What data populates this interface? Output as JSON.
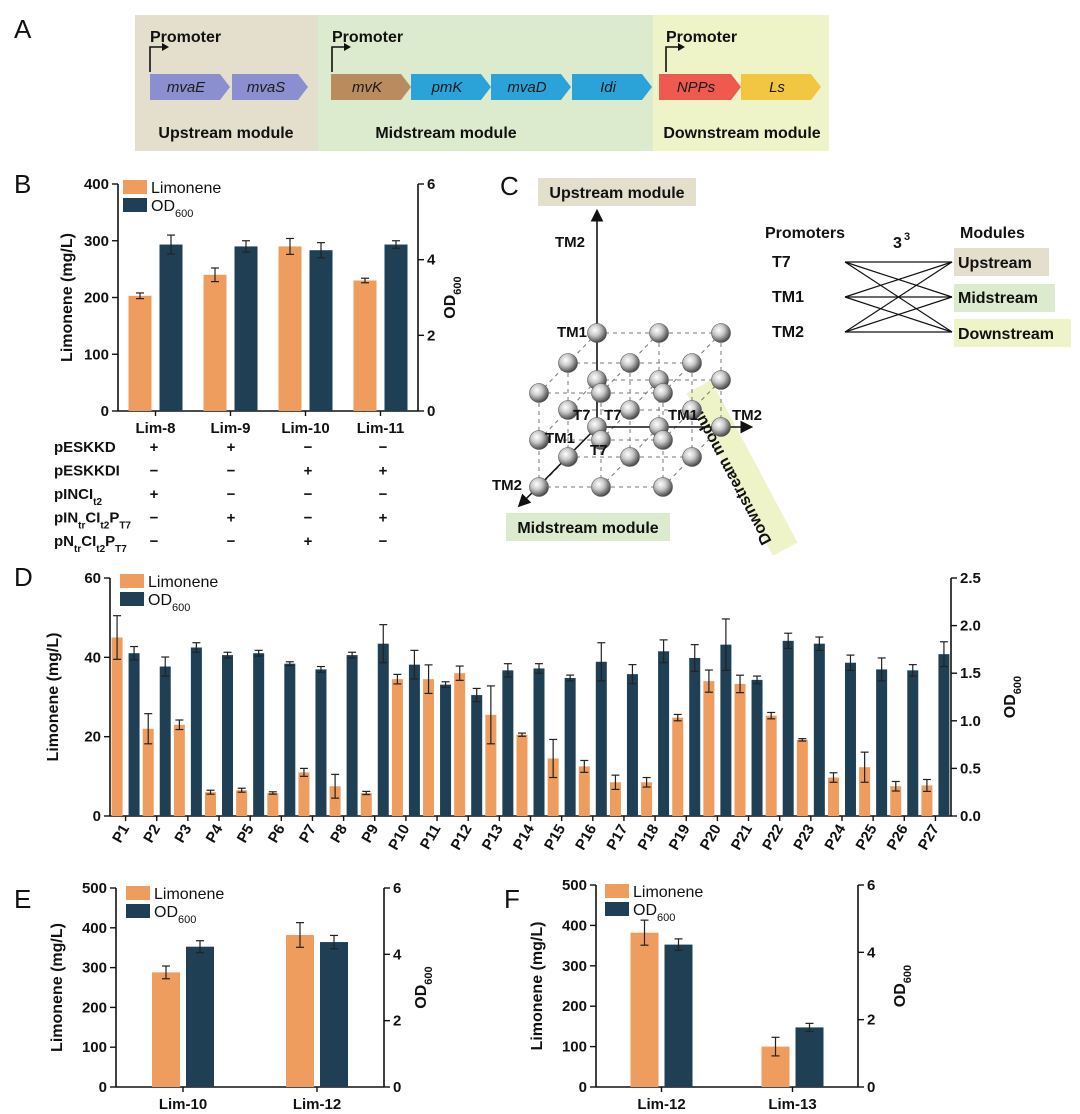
{
  "colors": {
    "limonene": "#EE9D5E",
    "od600": "#1F3F54",
    "upstream_bg": "#E3DFCC",
    "midstream_bg": "#DCEBCE",
    "downstream_bg": "#EFF3C8",
    "grid": "#8a8a8a"
  },
  "panels": {
    "A": "A",
    "B": "B",
    "C": "C",
    "D": "D",
    "E": "E",
    "F": "F"
  },
  "panelA": {
    "modules": [
      {
        "promoter": "Promoter",
        "label": "Upstream module",
        "genes": [
          {
            "name": "mvaE",
            "color": "#8B8FCF"
          },
          {
            "name": "mvaS",
            "color": "#8B8FCF"
          }
        ]
      },
      {
        "promoter": "Promoter",
        "label": "Midstream module",
        "genes": [
          {
            "name": "mvK",
            "color": "#B98B5F"
          },
          {
            "name": "pmK",
            "color": "#2CA3D8"
          },
          {
            "name": "mvaD",
            "color": "#2CA3D8"
          },
          {
            "name": "Idi",
            "color": "#2CA3D8"
          }
        ]
      },
      {
        "promoter": "Promoter",
        "label": "Downstream module",
        "genes": [
          {
            "name": "NPPs",
            "color": "#EE5A4E"
          },
          {
            "name": "Ls",
            "color": "#F3C642"
          }
        ]
      }
    ]
  },
  "panelC": {
    "axis_up": "Upstream module",
    "axis_mid": "Midstream module",
    "axis_down": "Downstream module",
    "tm2_top": "TM2",
    "tm1_left": "TM1",
    "t7_origin": "T7",
    "t7_right": "T7",
    "tm1_right": "TM1",
    "tm2_right": "TM2",
    "tm1_diag": "TM1",
    "t7_diag": "T7",
    "tm2_diag": "TM2",
    "promoters_title": "Promoters",
    "modules_title": "Modules",
    "combo_base": "3",
    "combo_exp": "3",
    "promoters": [
      "T7",
      "TM1",
      "TM2"
    ],
    "modules": [
      "Upstream",
      "Midstream",
      "Downstream"
    ]
  },
  "common": {
    "ylabel_left": "Limonene (mg/L)",
    "ylabel_right_main": "OD",
    "ylabel_right_sub": "600",
    "legend_lim": "Limonene",
    "legend_od_main": "OD",
    "legend_od_sub": "600"
  },
  "chart_data": [
    {
      "panel": "B",
      "type": "bar",
      "categories": [
        "Lim-8",
        "Lim-9",
        "Lim-10",
        "Lim-11"
      ],
      "series": [
        {
          "name": "Limonene",
          "axis": "left",
          "values": [
            203,
            240,
            290,
            230
          ],
          "errors": [
            5,
            12,
            14,
            4
          ]
        },
        {
          "name": "OD600",
          "axis": "right",
          "values": [
            4.4,
            4.35,
            4.25,
            4.4
          ],
          "errors": [
            0.25,
            0.15,
            0.2,
            0.1
          ]
        }
      ],
      "ylim_left": [
        0,
        400
      ],
      "yticks_left": [
        0,
        100,
        200,
        300,
        400
      ],
      "ylim_right": [
        0,
        6
      ],
      "yticks_right": [
        0,
        2,
        4,
        6
      ],
      "xlabel": "",
      "ylabel": "Limonene (mg/L)",
      "ylabel_right": "OD600",
      "legend": "top-left",
      "plasmid_table": {
        "rows": [
          {
            "name": "pESKKD",
            "marks": [
              "+",
              "+",
              "−",
              "−"
            ]
          },
          {
            "name": "pESKKDI",
            "marks": [
              "−",
              "−",
              "+",
              "+"
            ]
          },
          {
            "name": "pINCI",
            "sub": "t2",
            "marks": [
              "+",
              "−",
              "−",
              "−"
            ]
          },
          {
            "name": "pIN",
            "sub1": "tr",
            "mid": "CI",
            "sub2": "t2",
            "tail": "P",
            "sub3": "T7",
            "marks": [
              "−",
              "+",
              "−",
              "+"
            ]
          },
          {
            "name": "pN",
            "sub1": "tr",
            "mid": "CI",
            "sub2": "t2",
            "tail": "P",
            "sub3": "T7",
            "marks": [
              "−",
              "−",
              "+",
              "−"
            ]
          }
        ]
      }
    },
    {
      "panel": "D",
      "type": "bar",
      "categories": [
        "P1",
        "P2",
        "P3",
        "P4",
        "P5",
        "P6",
        "P7",
        "P8",
        "P9",
        "P10",
        "P11",
        "P12",
        "P13",
        "P14",
        "P15",
        "P16",
        "P17",
        "P18",
        "P19",
        "P20",
        "P21",
        "P22",
        "P23",
        "P24",
        "P25",
        "P26",
        "P27"
      ],
      "series": [
        {
          "name": "Limonene",
          "axis": "left",
          "values": [
            45,
            22,
            23,
            6,
            6.5,
            5.8,
            11,
            7.5,
            5.8,
            34.5,
            34.5,
            36,
            25.5,
            20.5,
            14.5,
            12.5,
            8.5,
            8.5,
            24.8,
            34,
            33.3,
            25.3,
            19.2,
            9.7,
            12.3,
            7.5,
            7.7
          ],
          "errors": [
            5.5,
            3.8,
            1.2,
            0.5,
            0.5,
            0.3,
            1,
            3,
            0.4,
            1.2,
            3.6,
            1.8,
            7.3,
            0.4,
            4.8,
            1.5,
            1.8,
            1.2,
            0.8,
            2.8,
            2.2,
            0.8,
            0.3,
            1.2,
            3.8,
            1.2,
            1.5
          ]
        },
        {
          "name": "OD600",
          "axis": "right",
          "values": [
            1.71,
            1.57,
            1.77,
            1.69,
            1.71,
            1.6,
            1.54,
            1.69,
            1.81,
            1.59,
            1.38,
            1.27,
            1.53,
            1.55,
            1.45,
            1.62,
            1.49,
            1.73,
            1.66,
            1.8,
            1.43,
            1.84,
            1.81,
            1.61,
            1.54,
            1.53,
            1.7
          ],
          "errors": [
            0.07,
            0.1,
            0.05,
            0.03,
            0.03,
            0.02,
            0.03,
            0.03,
            0.2,
            0.15,
            0.03,
            0.07,
            0.07,
            0.05,
            0.03,
            0.2,
            0.1,
            0.12,
            0.14,
            0.27,
            0.04,
            0.08,
            0.07,
            0.08,
            0.12,
            0.06,
            0.13
          ]
        }
      ],
      "ylim_left": [
        0,
        60
      ],
      "yticks_left": [
        0,
        20,
        40,
        60
      ],
      "ylim_right": [
        0,
        2.5
      ],
      "yticks_right": [
        "0.0",
        "0.5",
        "1.0",
        "1.5",
        "2.0",
        "2.5"
      ],
      "xlabel": "",
      "ylabel": "Limonene (mg/L)",
      "ylabel_right": "OD600",
      "legend": "top-left"
    },
    {
      "panel": "E",
      "type": "bar",
      "categories": [
        "Lim-10",
        "Lim-12"
      ],
      "series": [
        {
          "name": "Limonene",
          "axis": "left",
          "values": [
            288,
            382
          ],
          "errors": [
            16,
            31
          ]
        },
        {
          "name": "OD600",
          "axis": "right",
          "values": [
            4.23,
            4.37
          ],
          "errors": [
            0.18,
            0.2
          ]
        }
      ],
      "ylim_left": [
        0,
        500
      ],
      "yticks_left": [
        0,
        100,
        200,
        300,
        400,
        500
      ],
      "ylim_right": [
        0,
        6
      ],
      "yticks_right": [
        0,
        2,
        4,
        6
      ],
      "xlabel": "",
      "ylabel": "Limonene (mg/L)",
      "ylabel_right": "OD600",
      "legend": "top-left"
    },
    {
      "panel": "F",
      "type": "bar",
      "categories": [
        "Lim-12",
        "Lim-13"
      ],
      "series": [
        {
          "name": "Limonene",
          "axis": "left",
          "values": [
            382,
            100
          ],
          "errors": [
            31,
            23
          ]
        },
        {
          "name": "OD600",
          "axis": "right",
          "values": [
            4.23,
            1.77
          ],
          "errors": [
            0.17,
            0.12
          ]
        }
      ],
      "ylim_left": [
        0,
        500
      ],
      "yticks_left": [
        0,
        100,
        200,
        300,
        400,
        500
      ],
      "ylim_right": [
        0,
        6
      ],
      "yticks_right": [
        0,
        2,
        4,
        6
      ],
      "xlabel": "",
      "ylabel": "Limonene (mg/L)",
      "ylabel_right": "OD600",
      "legend": "top-left"
    }
  ]
}
